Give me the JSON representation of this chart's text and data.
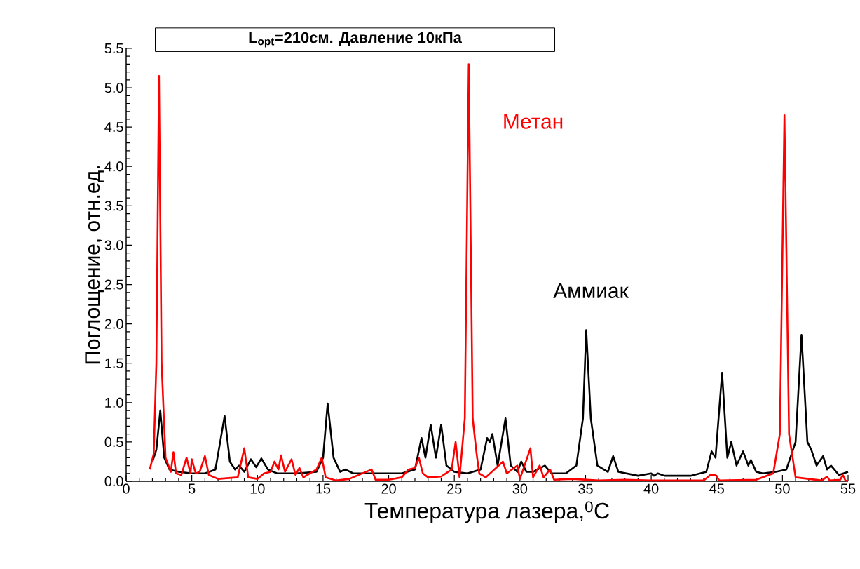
{
  "chart_data": {
    "type": "line",
    "title": "L$_{opt}$=210см. Давление 10кПа",
    "xlabel": "Температура лазера,$^{0}$C",
    "ylabel": "Поглощение, отн.ед.",
    "xlim": [
      0,
      55
    ],
    "ylim": [
      0,
      5.5
    ],
    "xticks": [
      0,
      5,
      10,
      15,
      20,
      25,
      30,
      35,
      40,
      45,
      50,
      55
    ],
    "yticks": [
      {
        "value": 0,
        "label": "0.0"
      },
      {
        "value": 0.5,
        "label": "0.5"
      },
      {
        "value": 1,
        "label": "1.0"
      },
      {
        "value": 1.5,
        "label": "1.5"
      },
      {
        "value": 2,
        "label": "2.0"
      },
      {
        "value": 2.5,
        "label": "2.5"
      },
      {
        "value": 3,
        "label": "3.0"
      },
      {
        "value": 3.5,
        "label": "3.5"
      },
      {
        "value": 4,
        "label": "4.0"
      },
      {
        "value": 4.5,
        "label": "4.5"
      },
      {
        "value": 5,
        "label": "5.0"
      },
      {
        "value": 5.5,
        "label": "5.5"
      }
    ],
    "grid": false,
    "legend": false,
    "marker": "none",
    "line_style": "solid",
    "series": [
      {
        "name": "Аммиак",
        "color": "#000000",
        "x": [
          2.0,
          2.3,
          2.6,
          2.9,
          3.3,
          4,
          5,
          6,
          6.8,
          7.5,
          7.9,
          8.3,
          8.6,
          9.0,
          9.5,
          9.9,
          10.3,
          10.8,
          11.5,
          13,
          14.5,
          15.0,
          15.35,
          15.8,
          16.3,
          16.7,
          17.3,
          19,
          21,
          22.0,
          22.5,
          22.8,
          23.2,
          23.6,
          24.0,
          24.4,
          25,
          26,
          27,
          27.5,
          27.7,
          27.9,
          28.3,
          28.9,
          29.3,
          29.8,
          30.1,
          30.5,
          31.0,
          31.9,
          32.4,
          33.5,
          34.3,
          34.8,
          35.05,
          35.4,
          35.9,
          36.7,
          37.1,
          37.5,
          39,
          40.0,
          40.2,
          40.5,
          41,
          43,
          44.2,
          44.6,
          44.9,
          45.4,
          45.8,
          46.1,
          46.5,
          47.0,
          47.4,
          47.6,
          48.0,
          48.5,
          49.5,
          50.3,
          51.0,
          51.45,
          51.9,
          52.2,
          52.6,
          53.1,
          53.4,
          53.7,
          54.3,
          55.0
        ],
        "values": [
          0.25,
          0.4,
          0.9,
          0.3,
          0.15,
          0.12,
          0.1,
          0.1,
          0.15,
          0.83,
          0.25,
          0.15,
          0.2,
          0.12,
          0.28,
          0.18,
          0.29,
          0.15,
          0.1,
          0.1,
          0.12,
          0.3,
          0.99,
          0.3,
          0.12,
          0.15,
          0.1,
          0.1,
          0.1,
          0.15,
          0.55,
          0.3,
          0.72,
          0.3,
          0.72,
          0.2,
          0.12,
          0.1,
          0.15,
          0.55,
          0.5,
          0.6,
          0.2,
          0.8,
          0.2,
          0.12,
          0.25,
          0.12,
          0.12,
          0.2,
          0.1,
          0.1,
          0.2,
          0.8,
          1.92,
          0.8,
          0.2,
          0.12,
          0.32,
          0.12,
          0.07,
          0.1,
          0.07,
          0.1,
          0.07,
          0.07,
          0.12,
          0.38,
          0.3,
          1.38,
          0.3,
          0.5,
          0.2,
          0.38,
          0.2,
          0.27,
          0.12,
          0.1,
          0.12,
          0.15,
          0.5,
          1.86,
          0.5,
          0.4,
          0.2,
          0.32,
          0.15,
          0.2,
          0.08,
          0.12
        ]
      },
      {
        "name": "Метан",
        "color": "#ff0000",
        "x": [
          1.8,
          2.1,
          2.3,
          2.5,
          2.7,
          3.0,
          3.4,
          3.6,
          3.8,
          4.2,
          4.6,
          4.9,
          5.0,
          5.3,
          5.6,
          6.0,
          6.3,
          7,
          8.5,
          9.0,
          9.3,
          10,
          10.5,
          11.0,
          11.3,
          11.6,
          11.8,
          12.1,
          12.6,
          12.9,
          13.2,
          13.5,
          14.5,
          14.9,
          15.2,
          16,
          17,
          18.7,
          19.0,
          20,
          21,
          21.5,
          22.0,
          22.3,
          22.6,
          23,
          24,
          24.8,
          25.1,
          25.4,
          25.8,
          26.1,
          26.4,
          26.7,
          26.9,
          27.4,
          28.7,
          29.0,
          29.8,
          30.0,
          30.8,
          31.0,
          31.5,
          31.8,
          32.3,
          32.6,
          34,
          36,
          38,
          40,
          44,
          44.5,
          44.9,
          45.2,
          48,
          49.3,
          49.8,
          50.15,
          50.5,
          51,
          53,
          53.4,
          53.6,
          54.4,
          54.6,
          54.8,
          55
        ],
        "values": [
          0.15,
          0.35,
          1.5,
          5.15,
          1.5,
          0.3,
          0.12,
          0.37,
          0.1,
          0.08,
          0.3,
          0.1,
          0.28,
          0.1,
          0.12,
          0.32,
          0.08,
          0.03,
          0.05,
          0.42,
          0.05,
          0.03,
          0.1,
          0.12,
          0.25,
          0.15,
          0.33,
          0.12,
          0.28,
          0.08,
          0.17,
          0.05,
          0.15,
          0.3,
          0.05,
          0.01,
          0.03,
          0.15,
          0.02,
          0.02,
          0.05,
          0.15,
          0.17,
          0.3,
          0.1,
          0.05,
          0.06,
          0.15,
          0.5,
          0.05,
          0.8,
          5.3,
          0.8,
          0.35,
          0.1,
          0.05,
          0.25,
          0.1,
          0.2,
          0.03,
          0.42,
          0.05,
          0.2,
          0.05,
          0.15,
          0.02,
          0.03,
          0.01,
          0.02,
          0.01,
          0.01,
          0.08,
          0.08,
          0.01,
          0.02,
          0.1,
          0.6,
          4.65,
          0.6,
          0.05,
          0.01,
          0.06,
          0.01,
          0.02,
          0.08,
          0.01,
          0.0
        ]
      }
    ]
  }
}
